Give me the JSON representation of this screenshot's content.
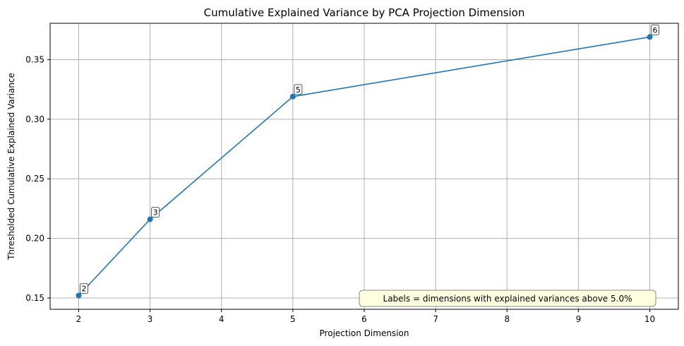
{
  "chart_data": {
    "type": "line",
    "title": "Cumulative Explained Variance by PCA Projection Dimension",
    "xlabel": "Projection Dimension",
    "ylabel": "Thresholded Cumulative Explained Variance",
    "xlim": [
      1.6,
      10.4
    ],
    "ylim": [
      0.1405,
      0.3805
    ],
    "xticks": [
      2,
      3,
      4,
      5,
      6,
      7,
      8,
      9,
      10
    ],
    "yticks": [
      0.15,
      0.2,
      0.25,
      0.3,
      0.35
    ],
    "ytick_labels": [
      "0.15",
      "0.20",
      "0.25",
      "0.30",
      "0.35"
    ],
    "grid": true,
    "series": [
      {
        "color": "#1f77b4",
        "x": [
          2,
          3,
          5,
          10
        ],
        "y": [
          0.152,
          0.216,
          0.319,
          0.369
        ],
        "labels": [
          "2",
          "3",
          "5",
          "6"
        ]
      }
    ],
    "annotation": {
      "text": "Labels = dimensions with explained variances above 5.0%",
      "placement": "bottom-right",
      "background": "#ffffe0"
    }
  }
}
